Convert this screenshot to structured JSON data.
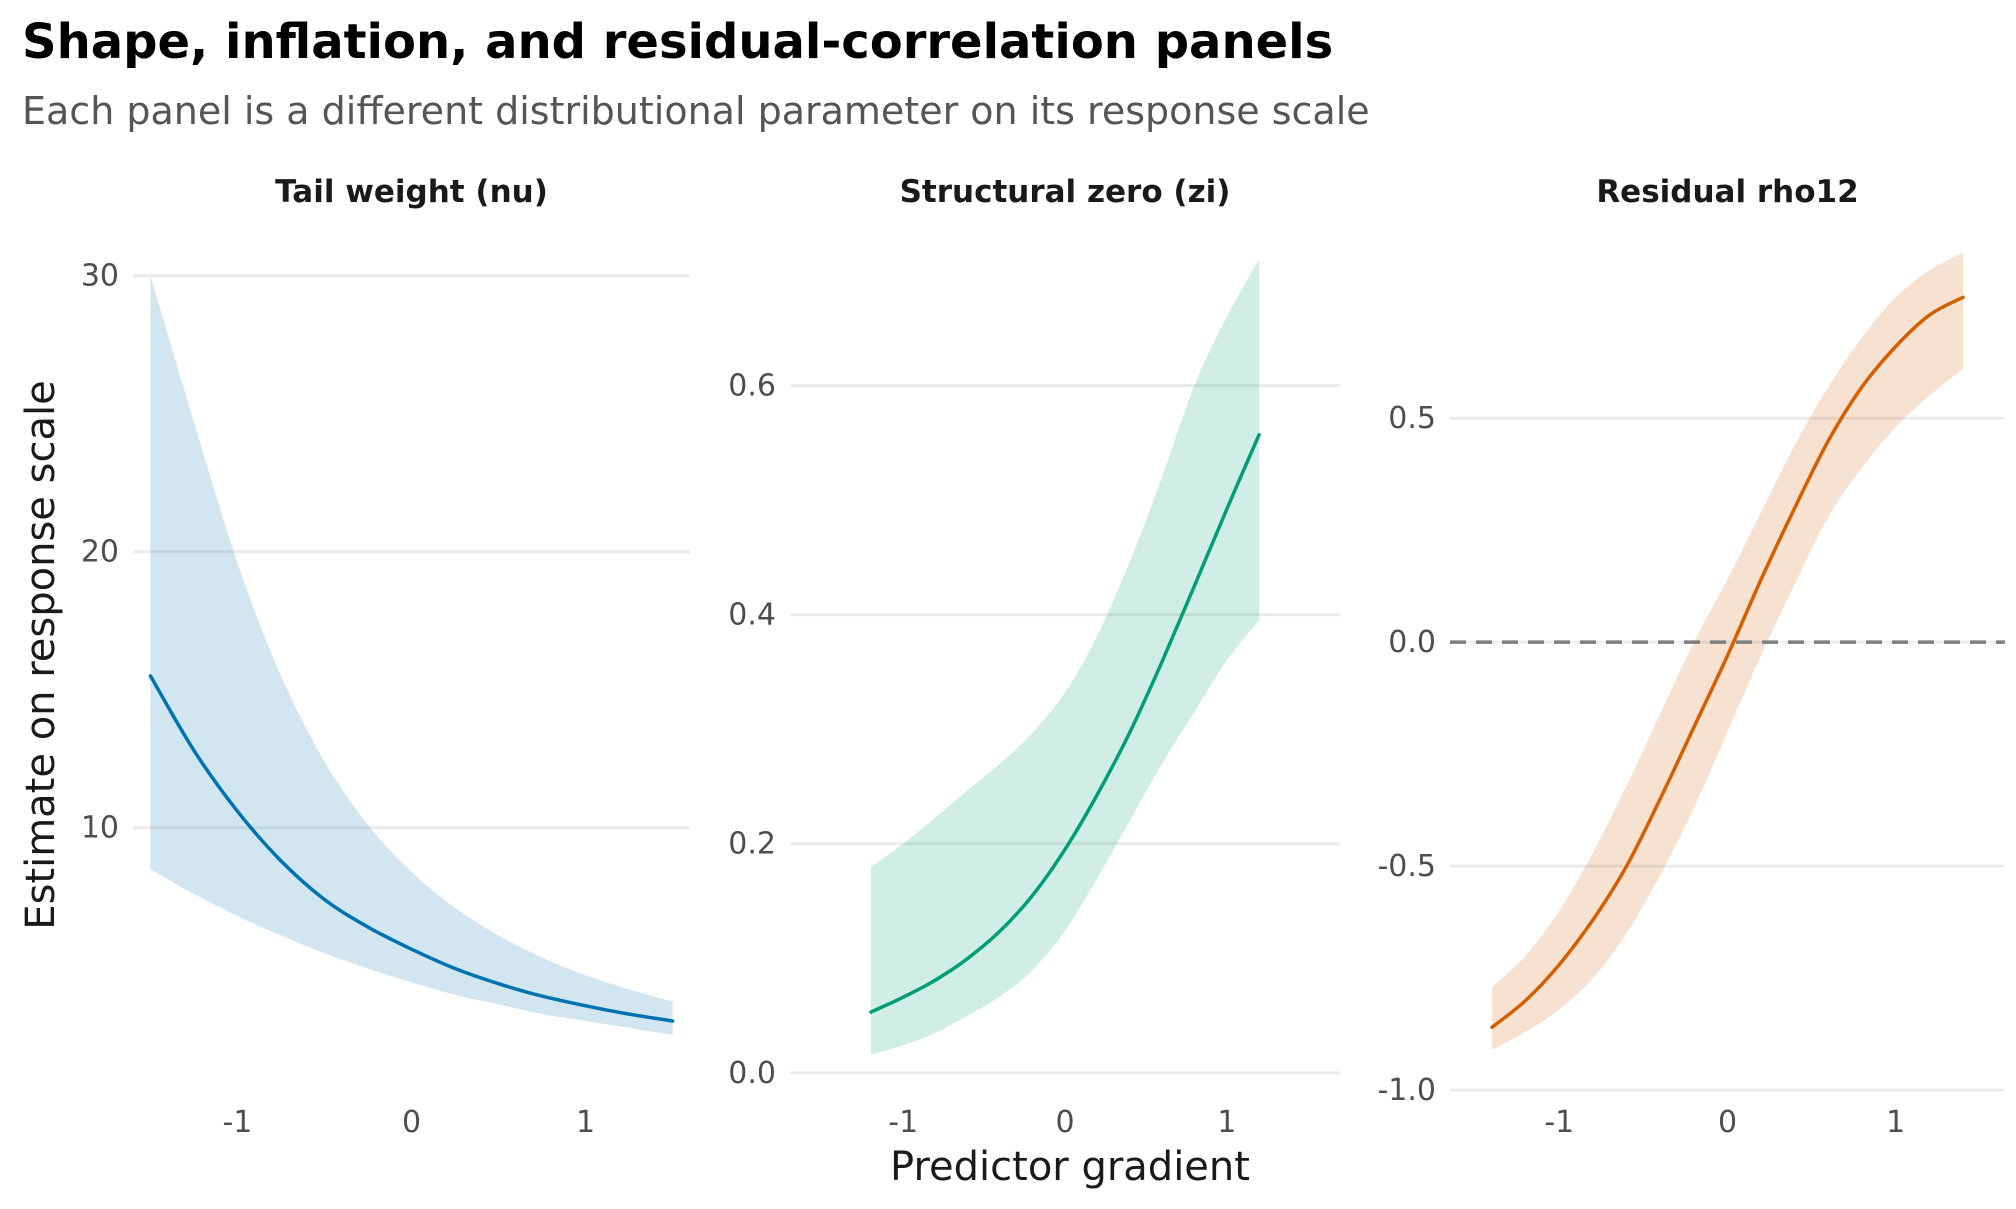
{
  "title": "Shape, inflation, and residual-correlation panels",
  "subtitle": "Each panel is a different distributional parameter on its response scale",
  "x_axis_title": "Predictor gradient",
  "y_axis_title": "Estimate on response scale",
  "chart_data": [
    {
      "type": "line",
      "panel": "Tail weight (nu)",
      "color": "#0072B2",
      "xlim": [
        -1.6,
        1.6
      ],
      "ylim": [
        0.5,
        31
      ],
      "x_ticks": [
        -1,
        0,
        1
      ],
      "x_tick_labels": [
        "-1",
        "0",
        "1"
      ],
      "y_ticks": [
        10,
        20,
        30
      ],
      "y_tick_labels": [
        "10",
        "20",
        "30"
      ],
      "x": [
        -1.5,
        -1.25,
        -1.0,
        -0.75,
        -0.5,
        -0.25,
        0.0,
        0.25,
        0.5,
        0.75,
        1.0,
        1.25,
        1.5
      ],
      "y": [
        15.5,
        12.8,
        10.6,
        8.8,
        7.4,
        6.4,
        5.6,
        4.9,
        4.35,
        3.9,
        3.55,
        3.25,
        3.0
      ],
      "lower": [
        8.5,
        7.6,
        6.8,
        6.1,
        5.45,
        4.9,
        4.4,
        3.95,
        3.6,
        3.25,
        3.0,
        2.75,
        2.5
      ],
      "upper": [
        30.0,
        24.7,
        19.6,
        15.5,
        12.4,
        10.1,
        8.4,
        7.1,
        6.1,
        5.3,
        4.65,
        4.15,
        3.7
      ],
      "reference_line": null
    },
    {
      "type": "line",
      "panel": "Structural zero (zi)",
      "color": "#009E73",
      "xlim": [
        -1.7,
        1.7
      ],
      "ylim": [
        -0.015,
        0.72
      ],
      "x_ticks": [
        -1,
        0,
        1
      ],
      "x_tick_labels": [
        "-1",
        "0",
        "1"
      ],
      "y_ticks": [
        0.0,
        0.2,
        0.4,
        0.6
      ],
      "y_tick_labels": [
        "0.0",
        "0.2",
        "0.4",
        "0.6"
      ],
      "x": [
        -1.2,
        -1.0,
        -0.8,
        -0.6,
        -0.4,
        -0.2,
        0.0,
        0.2,
        0.4,
        0.6,
        0.8,
        1.0,
        1.2
      ],
      "y": [
        0.053,
        0.066,
        0.081,
        0.1,
        0.124,
        0.155,
        0.195,
        0.243,
        0.297,
        0.359,
        0.425,
        0.492,
        0.557
      ],
      "lower": [
        0.016,
        0.024,
        0.035,
        0.05,
        0.067,
        0.09,
        0.124,
        0.17,
        0.22,
        0.27,
        0.315,
        0.36,
        0.395
      ],
      "upper": [
        0.18,
        0.2,
        0.223,
        0.247,
        0.27,
        0.297,
        0.332,
        0.382,
        0.446,
        0.52,
        0.6,
        0.66,
        0.71
      ],
      "reference_line": null
    },
    {
      "type": "line",
      "panel": "Residual rho12",
      "color": "#D55E00",
      "xlim": [
        -1.65,
        1.65
      ],
      "ylim": [
        -1.0,
        0.88
      ],
      "x_ticks": [
        -1,
        0,
        1
      ],
      "x_tick_labels": [
        "-1",
        "0",
        "1"
      ],
      "y_ticks": [
        -1.0,
        -0.5,
        0.0,
        0.5
      ],
      "y_tick_labels": [
        "-1.0",
        "-0.5",
        "0.0",
        "0.5"
      ],
      "x": [
        -1.4,
        -1.2,
        -1.0,
        -0.8,
        -0.6,
        -0.4,
        -0.2,
        0.0,
        0.2,
        0.4,
        0.6,
        0.8,
        1.0,
        1.2,
        1.4
      ],
      "y": [
        -0.86,
        -0.8,
        -0.72,
        -0.62,
        -0.5,
        -0.35,
        -0.19,
        -0.03,
        0.14,
        0.3,
        0.45,
        0.57,
        0.66,
        0.73,
        0.77
      ],
      "lower": [
        -0.91,
        -0.87,
        -0.82,
        -0.75,
        -0.65,
        -0.52,
        -0.37,
        -0.2,
        -0.03,
        0.13,
        0.28,
        0.39,
        0.48,
        0.55,
        0.61
      ],
      "upper": [
        -0.77,
        -0.7,
        -0.6,
        -0.47,
        -0.32,
        -0.16,
        0.0,
        0.14,
        0.29,
        0.44,
        0.57,
        0.68,
        0.77,
        0.83,
        0.87
      ],
      "reference_line": 0.0
    }
  ]
}
